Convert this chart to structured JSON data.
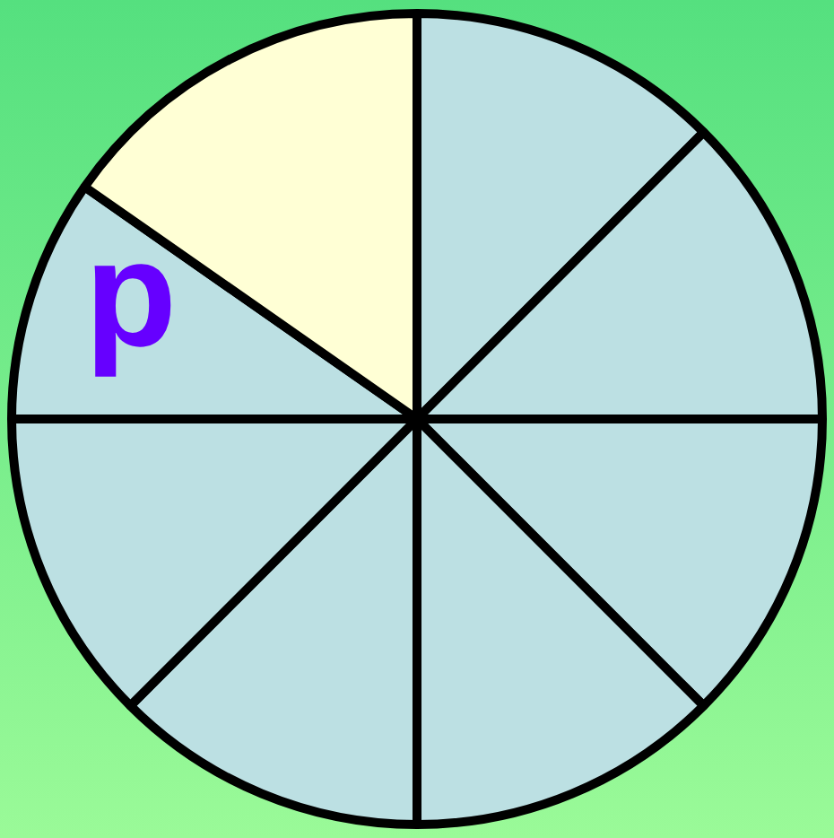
{
  "chart_data": {
    "type": "pie",
    "categories": [
      null,
      null,
      null,
      null,
      null,
      null,
      "p",
      null
    ],
    "values": [
      12.5,
      12.5,
      12.5,
      12.5,
      12.5,
      12.5,
      9.7,
      15.3
    ],
    "colors": [
      "#bce0e3",
      "#bce0e3",
      "#bce0e3",
      "#bce0e3",
      "#bce0e3",
      "#bce0e3",
      "#bce0e3",
      "#ffffd5"
    ],
    "legend": false
  }
}
